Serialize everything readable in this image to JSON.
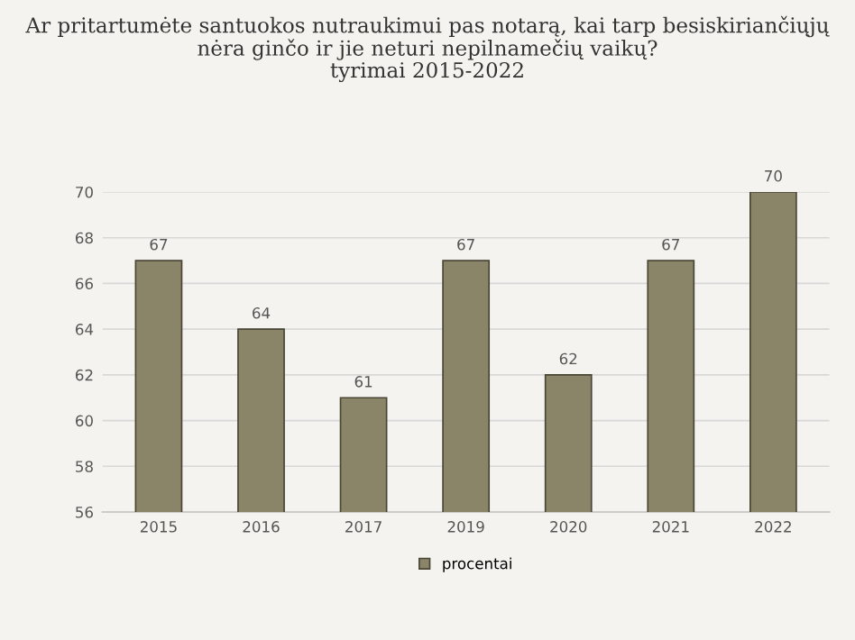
{
  "chart_data": {
    "type": "bar",
    "title": "Ar pritartumėte santuokos nutraukimui pas notarą, kai tarp besiskiriančiųjų\nnėra ginčo ir jie neturi nepilnamečių vaikų?\ntyrimai 2015-2022",
    "categories": [
      "2015",
      "2016",
      "2017",
      "2019",
      "2020",
      "2021",
      "2022"
    ],
    "series": [
      {
        "name": "procentai",
        "color": "#8a8468",
        "values": [
          67,
          64,
          61,
          67,
          62,
          67,
          70
        ]
      }
    ],
    "ylim": [
      56,
      70
    ],
    "yticks": [
      56,
      58,
      60,
      62,
      64,
      66,
      68,
      70
    ],
    "grid": "y",
    "legend": "bottom",
    "data_labels": true
  }
}
